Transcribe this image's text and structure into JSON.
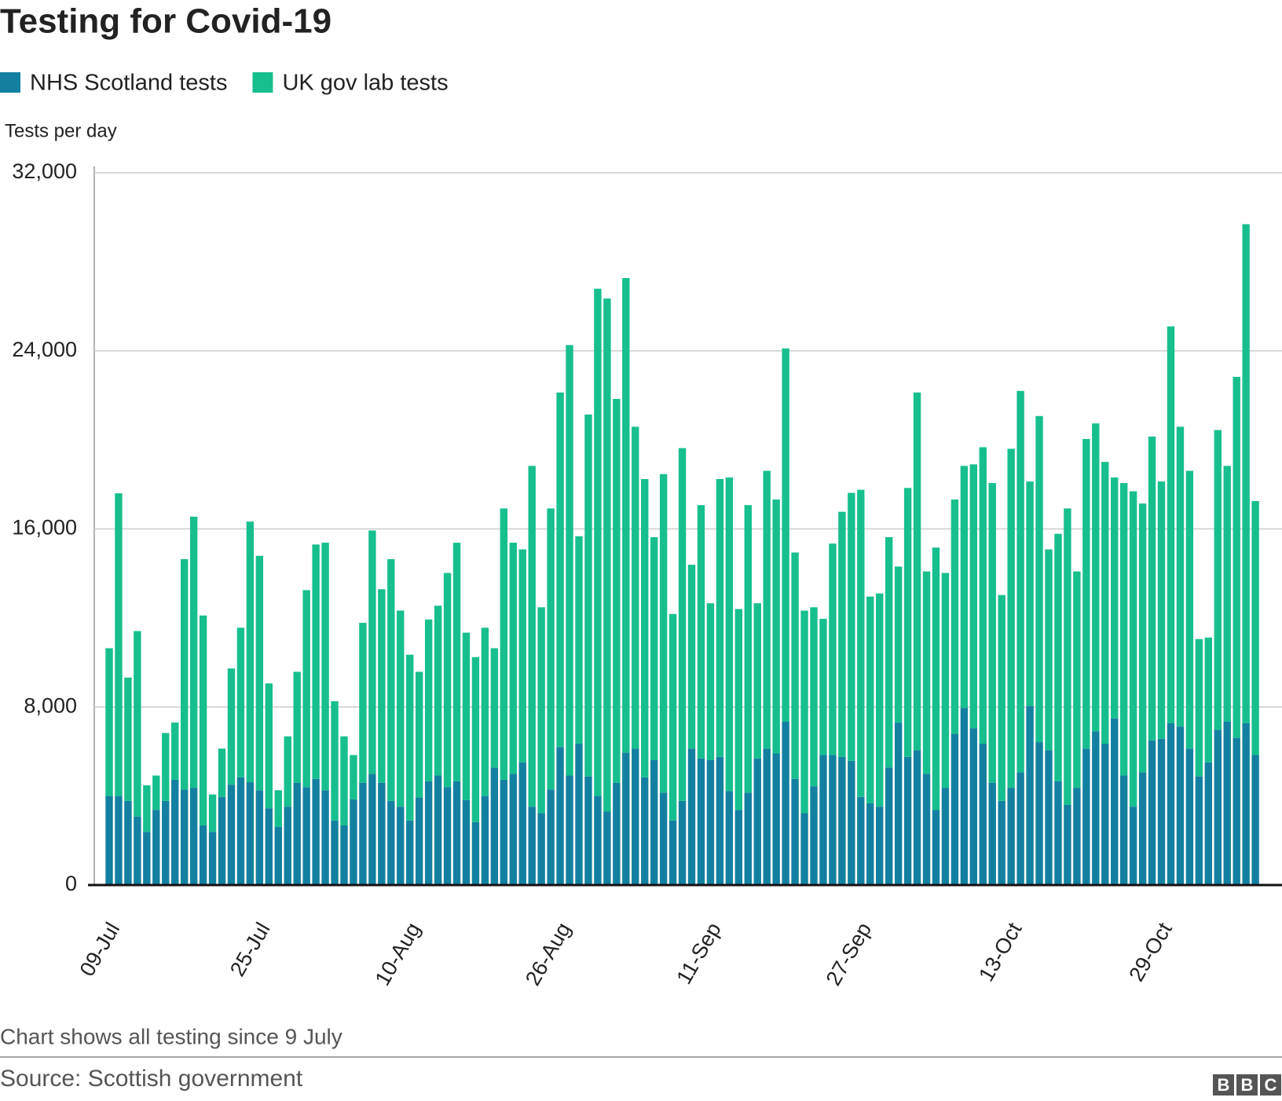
{
  "chart_data": {
    "type": "stacked_bar",
    "title": "Testing for Covid-19",
    "y_label": "Tests per day",
    "note": "Chart shows all testing since 9 July",
    "source": "Source: Scottish government",
    "logo": [
      "B",
      "B",
      "C"
    ],
    "categories": [
      "09-Jul",
      null,
      null,
      null,
      null,
      null,
      null,
      null,
      null,
      null,
      null,
      null,
      null,
      null,
      null,
      null,
      "25-Jul",
      null,
      null,
      null,
      null,
      null,
      null,
      null,
      null,
      null,
      null,
      null,
      null,
      null,
      null,
      null,
      "10-Aug",
      null,
      null,
      null,
      null,
      null,
      null,
      null,
      null,
      null,
      null,
      null,
      null,
      null,
      null,
      null,
      "26-Aug",
      null,
      null,
      null,
      null,
      null,
      null,
      null,
      null,
      null,
      null,
      null,
      null,
      null,
      null,
      null,
      "11-Sep",
      null,
      null,
      null,
      null,
      null,
      null,
      null,
      null,
      null,
      null,
      null,
      null,
      null,
      null,
      null,
      "27-Sep",
      null,
      null,
      null,
      null,
      null,
      null,
      null,
      null,
      null,
      null,
      null,
      null,
      null,
      null,
      null,
      "13-Oct",
      null,
      null,
      null,
      null,
      null,
      null,
      null,
      null,
      null,
      null,
      null,
      null,
      null,
      null,
      null,
      "29-Oct",
      null,
      null,
      null,
      null,
      null,
      null,
      null,
      null,
      null,
      null
    ],
    "series": [
      {
        "name": "NHS Scotland tests",
        "color": "#1380a1",
        "values": [
          4000,
          4000,
          3780,
          3080,
          2390,
          3380,
          3780,
          4730,
          4290,
          4370,
          2680,
          2390,
          3960,
          4510,
          4840,
          4620,
          4260,
          3450,
          2610,
          3520,
          4590,
          4400,
          4770,
          4260,
          2900,
          2680,
          3850,
          4590,
          4990,
          4590,
          3780,
          3520,
          2900,
          3930,
          4660,
          4920,
          4400,
          4660,
          3820,
          2830,
          4000,
          5280,
          4730,
          4990,
          5510,
          3520,
          3230,
          4290,
          6200,
          4920,
          6350,
          4880,
          4000,
          3300,
          4590,
          5950,
          6130,
          4840,
          5610,
          4150,
          2900,
          3780,
          6130,
          5690,
          5610,
          5760,
          4220,
          3380,
          4150,
          5690,
          6130,
          5910,
          7340,
          4770,
          3230,
          4440,
          5840,
          5840,
          5760,
          5580,
          3960,
          3670,
          3520,
          5280,
          7300,
          5760,
          6060,
          4990,
          3380,
          4370,
          6790,
          7960,
          7050,
          6350,
          4590,
          3780,
          4370,
          5060,
          8040,
          6420,
          6060,
          4660,
          3600,
          4370,
          6130,
          6900,
          6350,
          7490,
          4920,
          3520,
          5060,
          6500,
          6570,
          7270,
          7120,
          6130,
          4880,
          5510,
          6970,
          7340,
          6610,
          7270,
          5840
        ]
      },
      {
        "name": "UK gov lab tests",
        "color": "#17bf8e",
        "values": [
          6640,
          13600,
          5540,
          8330,
          2090,
          1540,
          3050,
          2570,
          10350,
          12180,
          9430,
          1680,
          2170,
          5220,
          6720,
          11710,
          10530,
          5610,
          1650,
          3160,
          4990,
          8850,
          10530,
          11120,
          5360,
          4000,
          1990,
          7190,
          10940,
          8700,
          10860,
          8810,
          7450,
          5650,
          7270,
          7630,
          9620,
          10720,
          7520,
          7410,
          7560,
          5360,
          12190,
          10390,
          9570,
          15310,
          9250,
          12630,
          15930,
          19340,
          9320,
          16260,
          22790,
          23050,
          17250,
          21320,
          14460,
          13400,
          10020,
          14310,
          9280,
          15850,
          8260,
          11380,
          7050,
          12480,
          14090,
          9020,
          12920,
          6970,
          12480,
          11410,
          16770,
          10170,
          9100,
          8040,
          6120,
          9500,
          11010,
          12040,
          13800,
          9290,
          9580,
          10350,
          7010,
          12080,
          16070,
          9100,
          11780,
          9650,
          10530,
          10870,
          11850,
          13320,
          13470,
          9250,
          15230,
          17140,
          10090,
          14650,
          9020,
          11120,
          13320,
          9720,
          13910,
          13840,
          12660,
          10820,
          13140,
          14170,
          12080,
          13650,
          11560,
          17830,
          13470,
          12480,
          6170,
          5610,
          13470,
          11490,
          16220,
          22420,
          11410
        ]
      }
    ],
    "ylim": [
      0,
      32000
    ],
    "yticks": [
      0,
      {
        "value": 8000,
        "label": "8,000"
      },
      {
        "value": 16000,
        "label": "16,000"
      },
      {
        "value": 24000,
        "label": "24,000"
      },
      {
        "value": 32000,
        "label": "32,000"
      }
    ],
    "grid": true
  }
}
